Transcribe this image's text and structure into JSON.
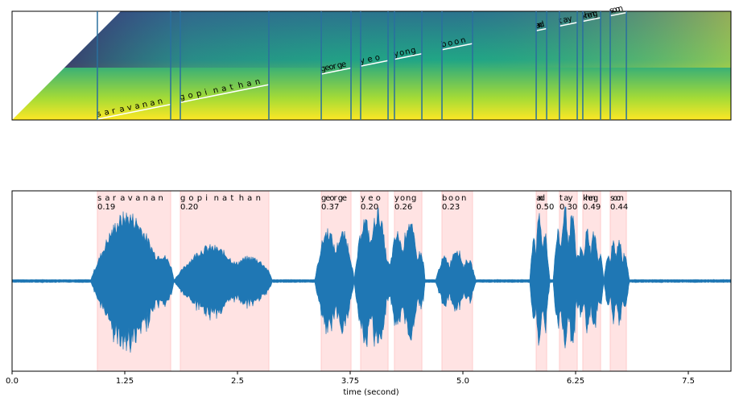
{
  "chart_data": {
    "type": "alignment",
    "xlabel": "time (second)",
    "xlim": [
      0,
      7.973
    ],
    "xticks": [
      {
        "value": 0,
        "label": "0.0"
      },
      1.25,
      2.5,
      3.75,
      {
        "value": 5,
        "label": "5.0"
      },
      6.25,
      7.5
    ],
    "segments": [
      {
        "chars": [
          "s",
          "a",
          "r",
          "a",
          "v",
          "a",
          "n",
          "a",
          "n"
        ],
        "start": 0.946,
        "end": 1.759
      },
      {
        "chars": [
          "g",
          "o",
          "p",
          "i",
          "n",
          "a",
          "t",
          "h",
          "a",
          "n"
        ],
        "start": 1.866,
        "end": 2.848
      },
      {
        "chars": [
          "g",
          "e",
          "o",
          "r",
          "g",
          "e"
        ],
        "start": 3.429,
        "end": 3.759
      },
      {
        "chars": [
          "y",
          "e",
          "o"
        ],
        "start": 3.866,
        "end": 4.17
      },
      {
        "chars": [
          "y",
          "o",
          "n",
          "g"
        ],
        "start": 4.241,
        "end": 4.545
      },
      {
        "chars": [
          "b",
          "o",
          "o",
          "n"
        ],
        "start": 4.768,
        "end": 5.107
      },
      {
        "chars": [
          "a",
          "n",
          "d"
        ],
        "start": 5.813,
        "end": 5.929
      },
      {
        "chars": [
          "t",
          "a",
          "y"
        ],
        "start": 6.071,
        "end": 6.268
      },
      {
        "chars": [
          "k",
          "h",
          "e",
          "n",
          "g"
        ],
        "start": 6.33,
        "end": 6.527
      },
      {
        "chars": [
          "s",
          "o",
          "o",
          "n"
        ],
        "start": 6.634,
        "end": 6.813
      }
    ],
    "values": [
      0.19,
      0.2,
      0.37,
      0.2,
      0.26,
      0.23,
      0.5,
      0.3,
      0.49,
      0.44
    ],
    "value_labels": [
      "0.19",
      "0.20",
      "0.37",
      "0.20",
      "0.26",
      "0.23",
      "0.50",
      "0.30",
      "0.49",
      "0.44"
    ],
    "shade_color": "#ffcccc",
    "wave_color": "#1f77b4",
    "line_color": "#2a6f9e"
  }
}
